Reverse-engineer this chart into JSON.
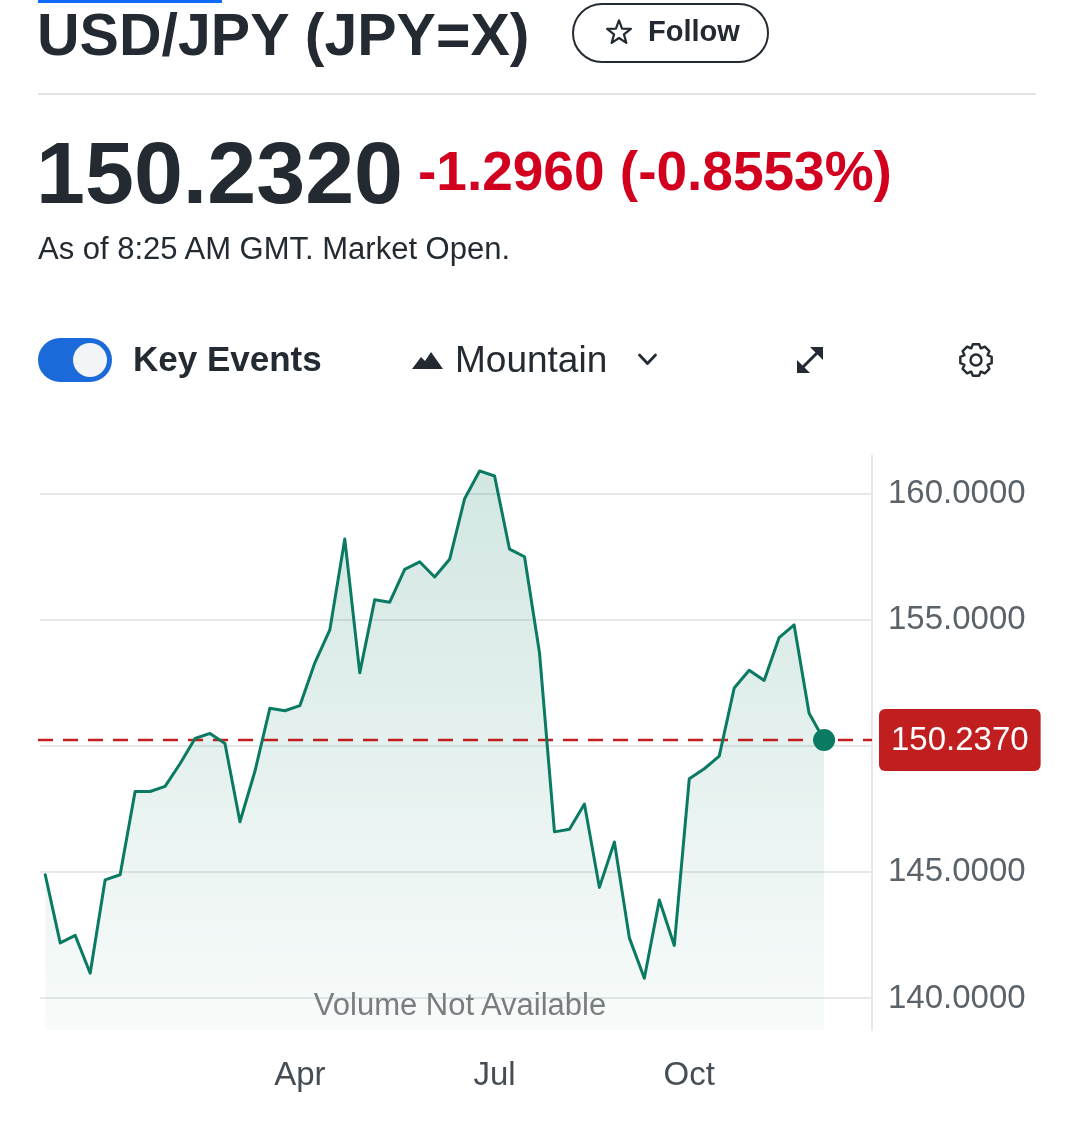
{
  "chart_data": {
    "type": "area",
    "title": "USD/JPY (JPY=X)",
    "subtitle": "150.2320",
    "annotations": [
      "-1.2960 (-0.8553%)",
      "As of 8:25 AM GMT. Market Open.",
      "Follow",
      "Key Events",
      "Mountain",
      "Volume Not Available"
    ],
    "categories": [
      null,
      null,
      null,
      null,
      null,
      null,
      null,
      null,
      null,
      null,
      null,
      null,
      null,
      null,
      null,
      null,
      null,
      "Apr",
      null,
      null,
      null,
      null,
      null,
      null,
      null,
      null,
      null,
      null,
      null,
      null,
      "Jul",
      null,
      null,
      null,
      null,
      null,
      null,
      null,
      null,
      null,
      null,
      null,
      null,
      "Oct",
      null,
      null,
      null,
      null,
      null,
      null,
      null,
      null,
      null
    ],
    "series": [
      {
        "color": "#0b7a62",
        "values": [
          144.9,
          142.2,
          142.5,
          141.0,
          144.7,
          144.9,
          148.2,
          148.2,
          148.4,
          149.3,
          150.3,
          150.5,
          150.1,
          147.0,
          149.0,
          151.5,
          151.4,
          151.6,
          153.3,
          154.6,
          158.2,
          152.9,
          155.8,
          155.7,
          157.0,
          157.3,
          156.7,
          157.4,
          159.8,
          160.9,
          160.7,
          157.8,
          157.5,
          153.7,
          146.6,
          146.7,
          147.7,
          144.4,
          146.2,
          142.4,
          140.8,
          143.9,
          142.1,
          148.7,
          149.1,
          149.6,
          152.3,
          153.0,
          152.6,
          154.3,
          154.8,
          151.3,
          150.237
        ]
      },
      {
        "type": "scatter",
        "color": "#0b7a62",
        "marker": "circle",
        "values": [
          null,
          null,
          null,
          null,
          null,
          null,
          null,
          null,
          null,
          null,
          null,
          null,
          null,
          null,
          null,
          null,
          null,
          null,
          null,
          null,
          null,
          null,
          null,
          null,
          null,
          null,
          null,
          null,
          null,
          null,
          null,
          null,
          null,
          null,
          null,
          null,
          null,
          null,
          null,
          null,
          null,
          null,
          null,
          null,
          null,
          null,
          null,
          null,
          null,
          null,
          null,
          null,
          150.237
        ]
      }
    ],
    "ylim": [
      138.75,
      161.5
    ],
    "yticks": [
      {
        "value": 140,
        "label": "140.0000"
      },
      {
        "value": 145,
        "label": "145.0000"
      },
      {
        "value": 150,
        "label": null
      },
      {
        "value": 155,
        "label": "155.0000"
      },
      {
        "value": 160,
        "label": "160.0000"
      }
    ],
    "grid": "y",
    "marker": "none",
    "ref_lines": [
      {
        "axis": "y",
        "value": 150.237,
        "label": "150.2370",
        "color": "#c11f1f",
        "line_style": "dashed"
      }
    ]
  }
}
